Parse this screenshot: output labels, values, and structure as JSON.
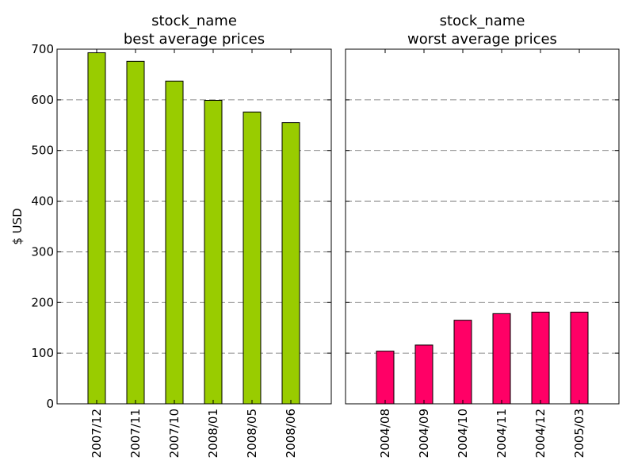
{
  "chart_data": [
    {
      "type": "bar",
      "title_line1": "stock_name",
      "title_line2": "best average prices",
      "categories": [
        "2007/12",
        "2007/11",
        "2007/10",
        "2008/01",
        "2008/05",
        "2008/06"
      ],
      "values": [
        693,
        676,
        637,
        599,
        576,
        555
      ],
      "ylabel": "$ USD",
      "ylim": [
        0,
        700
      ],
      "yticks": [
        0,
        100,
        200,
        300,
        400,
        500,
        600,
        700
      ],
      "bar_color": "#99cc00",
      "grid": true
    },
    {
      "type": "bar",
      "title_line1": "stock_name",
      "title_line2": "worst average prices",
      "categories": [
        "2004/08",
        "2004/09",
        "2004/10",
        "2004/11",
        "2004/12",
        "2005/03"
      ],
      "values": [
        104,
        116,
        165,
        178,
        181,
        181
      ],
      "ylim": [
        0,
        700
      ],
      "bar_color": "#ff0066",
      "grid": true
    }
  ]
}
